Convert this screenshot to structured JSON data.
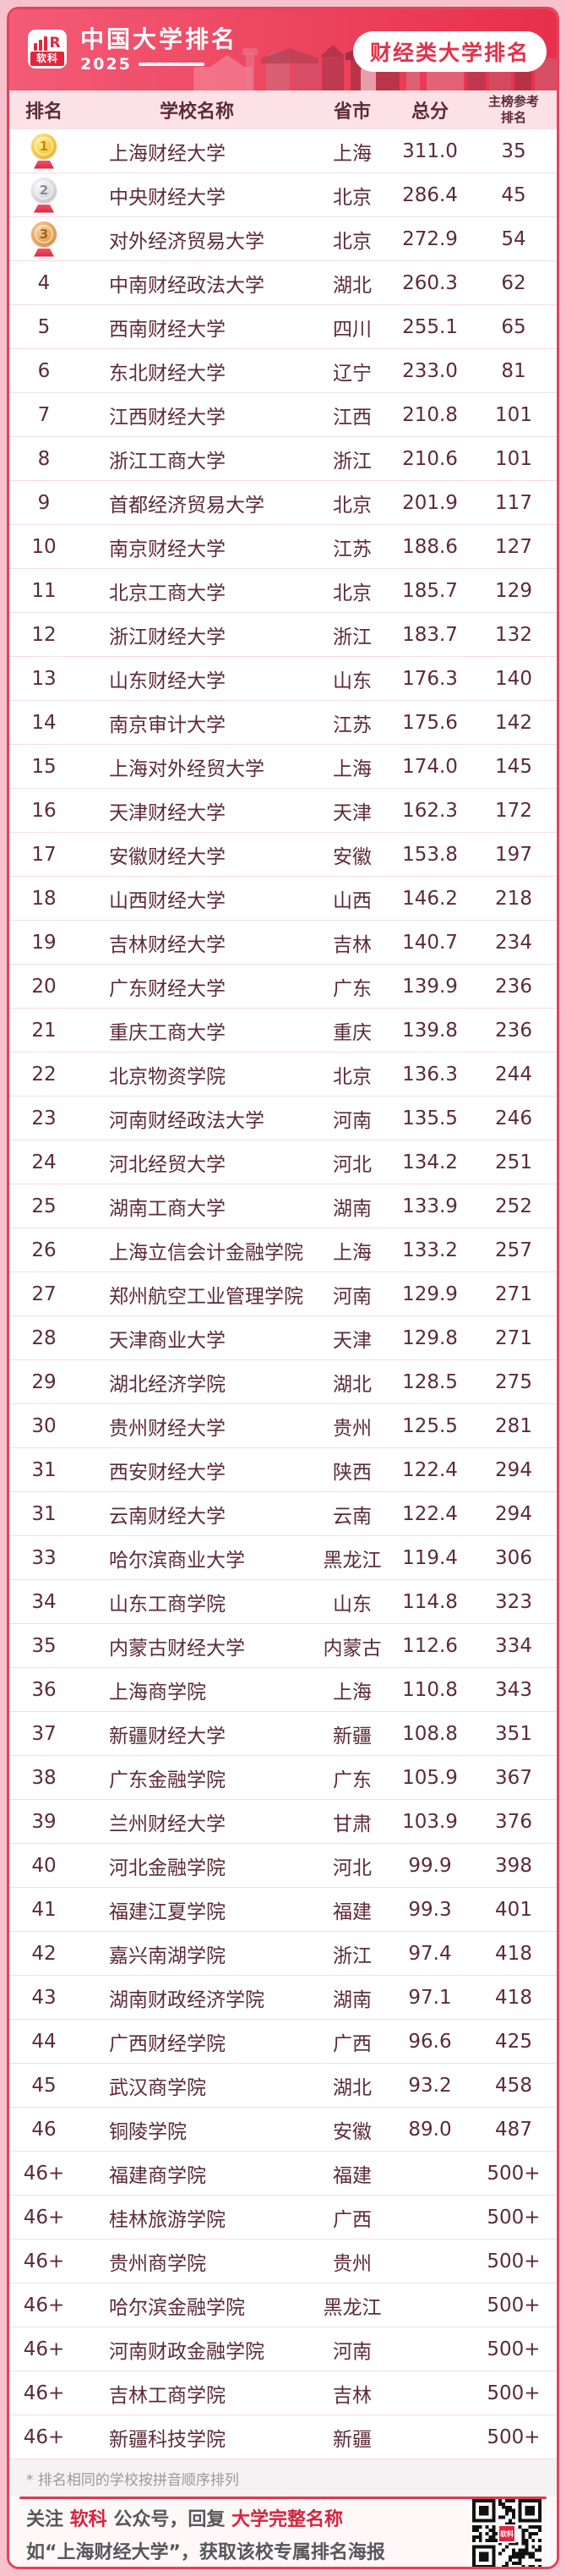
{
  "brand": {
    "logo_label": "软科",
    "title": "中国大学排名",
    "year": "2025",
    "badge": "财经类大学排名"
  },
  "table": {
    "headers": {
      "rank": "排名",
      "name": "学校名称",
      "province": "省市",
      "score": "总分",
      "ref_line1": "主榜参考",
      "ref_line2": "排名"
    },
    "rows": [
      {
        "rank": "1",
        "medal": "gold",
        "name": "上海财经大学",
        "province": "上海",
        "score": "311.0",
        "ref": "35"
      },
      {
        "rank": "2",
        "medal": "silver",
        "name": "中央财经大学",
        "province": "北京",
        "score": "286.4",
        "ref": "45"
      },
      {
        "rank": "3",
        "medal": "bronze",
        "name": "对外经济贸易大学",
        "province": "北京",
        "score": "272.9",
        "ref": "54"
      },
      {
        "rank": "4",
        "name": "中南财经政法大学",
        "province": "湖北",
        "score": "260.3",
        "ref": "62"
      },
      {
        "rank": "5",
        "name": "西南财经大学",
        "province": "四川",
        "score": "255.1",
        "ref": "65"
      },
      {
        "rank": "6",
        "name": "东北财经大学",
        "province": "辽宁",
        "score": "233.0",
        "ref": "81"
      },
      {
        "rank": "7",
        "name": "江西财经大学",
        "province": "江西",
        "score": "210.8",
        "ref": "101"
      },
      {
        "rank": "8",
        "name": "浙江工商大学",
        "province": "浙江",
        "score": "210.6",
        "ref": "101"
      },
      {
        "rank": "9",
        "name": "首都经济贸易大学",
        "province": "北京",
        "score": "201.9",
        "ref": "117"
      },
      {
        "rank": "10",
        "name": "南京财经大学",
        "province": "江苏",
        "score": "188.6",
        "ref": "127"
      },
      {
        "rank": "11",
        "name": "北京工商大学",
        "province": "北京",
        "score": "185.7",
        "ref": "129"
      },
      {
        "rank": "12",
        "name": "浙江财经大学",
        "province": "浙江",
        "score": "183.7",
        "ref": "132"
      },
      {
        "rank": "13",
        "name": "山东财经大学",
        "province": "山东",
        "score": "176.3",
        "ref": "140"
      },
      {
        "rank": "14",
        "name": "南京审计大学",
        "province": "江苏",
        "score": "175.6",
        "ref": "142"
      },
      {
        "rank": "15",
        "name": "上海对外经贸大学",
        "province": "上海",
        "score": "174.0",
        "ref": "145"
      },
      {
        "rank": "16",
        "name": "天津财经大学",
        "province": "天津",
        "score": "162.3",
        "ref": "172"
      },
      {
        "rank": "17",
        "name": "安徽财经大学",
        "province": "安徽",
        "score": "153.8",
        "ref": "197"
      },
      {
        "rank": "18",
        "name": "山西财经大学",
        "province": "山西",
        "score": "146.2",
        "ref": "218"
      },
      {
        "rank": "19",
        "name": "吉林财经大学",
        "province": "吉林",
        "score": "140.7",
        "ref": "234"
      },
      {
        "rank": "20",
        "name": "广东财经大学",
        "province": "广东",
        "score": "139.9",
        "ref": "236"
      },
      {
        "rank": "21",
        "name": "重庆工商大学",
        "province": "重庆",
        "score": "139.8",
        "ref": "236"
      },
      {
        "rank": "22",
        "name": "北京物资学院",
        "province": "北京",
        "score": "136.3",
        "ref": "244"
      },
      {
        "rank": "23",
        "name": "河南财经政法大学",
        "province": "河南",
        "score": "135.5",
        "ref": "246"
      },
      {
        "rank": "24",
        "name": "河北经贸大学",
        "province": "河北",
        "score": "134.2",
        "ref": "251"
      },
      {
        "rank": "25",
        "name": "湖南工商大学",
        "province": "湖南",
        "score": "133.9",
        "ref": "252"
      },
      {
        "rank": "26",
        "name": "上海立信会计金融学院",
        "province": "上海",
        "score": "133.2",
        "ref": "257"
      },
      {
        "rank": "27",
        "name": "郑州航空工业管理学院",
        "province": "河南",
        "score": "129.9",
        "ref": "271"
      },
      {
        "rank": "28",
        "name": "天津商业大学",
        "province": "天津",
        "score": "129.8",
        "ref": "271"
      },
      {
        "rank": "29",
        "name": "湖北经济学院",
        "province": "湖北",
        "score": "128.5",
        "ref": "275"
      },
      {
        "rank": "30",
        "name": "贵州财经大学",
        "province": "贵州",
        "score": "125.5",
        "ref": "281"
      },
      {
        "rank": "31",
        "name": "西安财经大学",
        "province": "陕西",
        "score": "122.4",
        "ref": "294"
      },
      {
        "rank": "31",
        "name": "云南财经大学",
        "province": "云南",
        "score": "122.4",
        "ref": "294"
      },
      {
        "rank": "33",
        "name": "哈尔滨商业大学",
        "province": "黑龙江",
        "score": "119.4",
        "ref": "306"
      },
      {
        "rank": "34",
        "name": "山东工商学院",
        "province": "山东",
        "score": "114.8",
        "ref": "323"
      },
      {
        "rank": "35",
        "name": "内蒙古财经大学",
        "province": "内蒙古",
        "score": "112.6",
        "ref": "334"
      },
      {
        "rank": "36",
        "name": "上海商学院",
        "province": "上海",
        "score": "110.8",
        "ref": "343"
      },
      {
        "rank": "37",
        "name": "新疆财经大学",
        "province": "新疆",
        "score": "108.8",
        "ref": "351"
      },
      {
        "rank": "38",
        "name": "广东金融学院",
        "province": "广东",
        "score": "105.9",
        "ref": "367"
      },
      {
        "rank": "39",
        "name": "兰州财经大学",
        "province": "甘肃",
        "score": "103.9",
        "ref": "376"
      },
      {
        "rank": "40",
        "name": "河北金融学院",
        "province": "河北",
        "score": "99.9",
        "ref": "398"
      },
      {
        "rank": "41",
        "name": "福建江夏学院",
        "province": "福建",
        "score": "99.3",
        "ref": "401"
      },
      {
        "rank": "42",
        "name": "嘉兴南湖学院",
        "province": "浙江",
        "score": "97.4",
        "ref": "418"
      },
      {
        "rank": "43",
        "name": "湖南财政经济学院",
        "province": "湖南",
        "score": "97.1",
        "ref": "418"
      },
      {
        "rank": "44",
        "name": "广西财经学院",
        "province": "广西",
        "score": "96.6",
        "ref": "425"
      },
      {
        "rank": "45",
        "name": "武汉商学院",
        "province": "湖北",
        "score": "93.2",
        "ref": "458"
      },
      {
        "rank": "46",
        "name": "铜陵学院",
        "province": "安徽",
        "score": "89.0",
        "ref": "487"
      },
      {
        "rank": "46+",
        "name": "福建商学院",
        "province": "福建",
        "score": "",
        "ref": "500+"
      },
      {
        "rank": "46+",
        "name": "桂林旅游学院",
        "province": "广西",
        "score": "",
        "ref": "500+"
      },
      {
        "rank": "46+",
        "name": "贵州商学院",
        "province": "贵州",
        "score": "",
        "ref": "500+"
      },
      {
        "rank": "46+",
        "name": "哈尔滨金融学院",
        "province": "黑龙江",
        "score": "",
        "ref": "500+"
      },
      {
        "rank": "46+",
        "name": "河南财政金融学院",
        "province": "河南",
        "score": "",
        "ref": "500+"
      },
      {
        "rank": "46+",
        "name": "吉林工商学院",
        "province": "吉林",
        "score": "",
        "ref": "500+"
      },
      {
        "rank": "46+",
        "name": "新疆科技学院",
        "province": "新疆",
        "score": "",
        "ref": "500+"
      }
    ]
  },
  "footnote": "* 排名相同的学校按拼音顺序排列",
  "footer": {
    "prefix": "关注 ",
    "brand": "软科",
    "middle": " 公众号，回复 ",
    "highlight": "大学完整名称",
    "line2": "如“上海财经大学”，获取该校专属排名海报",
    "qr_label": "软科"
  },
  "colors": {
    "accent": "#E4304A",
    "header_bg_left": "#F35B76",
    "header_bg_right": "#E7304A",
    "table_header_bg": "#FCE2E7",
    "row_text": "#5C2B36",
    "gold": "#F6C93E",
    "silver": "#D8D8DF",
    "bronze": "#E6A355"
  }
}
